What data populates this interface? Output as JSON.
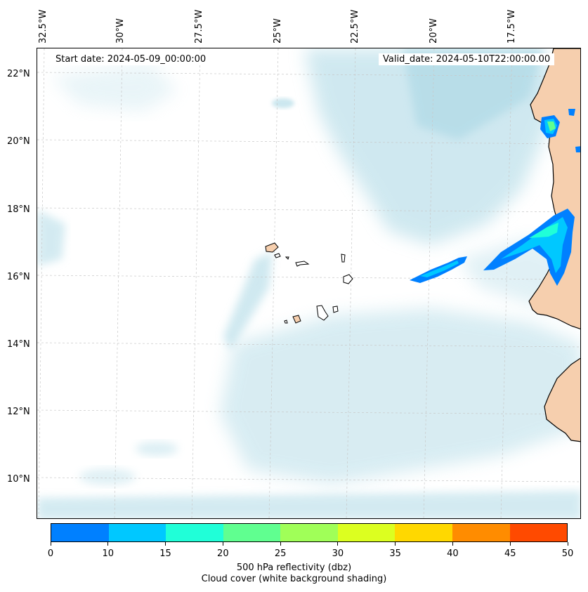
{
  "map": {
    "start_date": "Start date: 2024-05-09_00:00:00",
    "valid_date": "Valid_date: 2024-05-10T22:00:00.00",
    "longitude_labels": [
      "32.5°W",
      "30°W",
      "27.5°W",
      "25°W",
      "22.5°W",
      "20°W",
      "17.5°W"
    ],
    "latitude_labels": [
      "22°N",
      "20°N",
      "18°N",
      "16°N",
      "14°N",
      "12°N",
      "10°N"
    ],
    "land_color": "#f6cfae",
    "cloud_color": "#a9d7e4",
    "ocean_color": "#ffffff"
  },
  "colorbar": {
    "ticks": [
      "0",
      "10",
      "15",
      "20",
      "25",
      "30",
      "35",
      "40",
      "45",
      "50"
    ],
    "colors": [
      "#0080ff",
      "#00c8ff",
      "#20ffd8",
      "#60ff90",
      "#a0ff58",
      "#dcff20",
      "#ffd800",
      "#ff8c00",
      "#ff4a00"
    ],
    "label_line1": "500 hPa reflectivity (dbz)",
    "label_line2": "Cloud cover (white background shading)"
  }
}
